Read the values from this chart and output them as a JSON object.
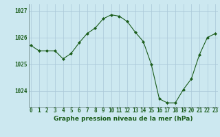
{
  "hours": [
    0,
    1,
    2,
    3,
    4,
    5,
    6,
    7,
    8,
    9,
    10,
    11,
    12,
    13,
    14,
    15,
    16,
    17,
    18,
    19,
    20,
    21,
    22,
    23
  ],
  "pressure": [
    1025.7,
    1025.5,
    1025.5,
    1025.5,
    1025.2,
    1025.4,
    1025.8,
    1026.15,
    1026.35,
    1026.7,
    1026.85,
    1026.8,
    1026.6,
    1026.2,
    1025.85,
    1025.0,
    1023.7,
    1023.55,
    1023.55,
    1024.05,
    1024.45,
    1025.35,
    1026.0,
    1026.15
  ],
  "line_color": "#1a5c1a",
  "marker": "D",
  "marker_size": 2.0,
  "bg_color": "#cce8f0",
  "grid_color": "#aac8d8",
  "ylim_min": 1023.4,
  "ylim_max": 1027.25,
  "yticks": [
    1024,
    1025,
    1026,
    1027
  ],
  "xlabel": "Graphe pression niveau de la mer (hPa)",
  "tick_fontsize": 5.5,
  "xlabel_fontsize": 6.5
}
